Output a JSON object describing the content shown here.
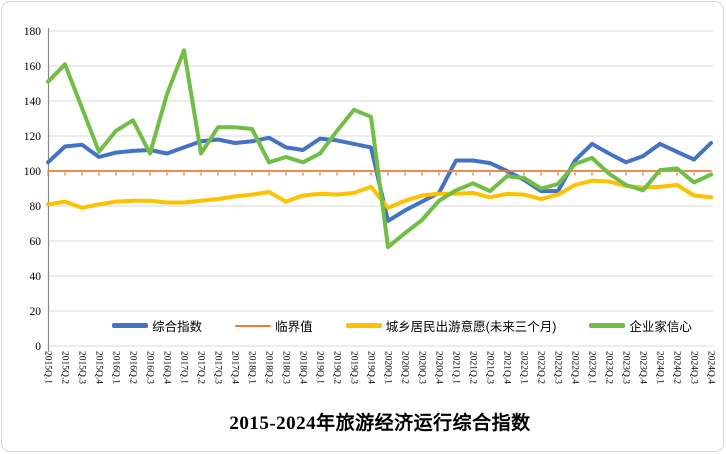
{
  "title": "2015-2024年旅游经济运行综合指数",
  "colors": {
    "grid": "#d9d9d9",
    "axis": "#898989",
    "text": "#000000",
    "background": "#ffffff"
  },
  "chart_data": {
    "type": "line",
    "title": "2015-2024年旅游经济运行综合指数",
    "xlabel": "",
    "ylabel": "",
    "ylim": [
      0,
      180
    ],
    "ytick_step": 20,
    "grid": true,
    "legend_position": "bottom",
    "x_tick_rotation": 90,
    "categories": [
      "2015Q.1",
      "2015Q.2",
      "2015Q.3",
      "2015Q.4",
      "2016Q.1",
      "2016Q.2",
      "2016Q.3",
      "2016Q.4",
      "2017Q.1",
      "2017Q.2",
      "2017Q.3",
      "2017Q.4",
      "2018Q.1",
      "2018Q.2",
      "2018Q.3",
      "2018Q.4",
      "2019Q.1",
      "2019Q.2",
      "2019Q.3",
      "2019Q.4",
      "2020Q.1",
      "2020Q.2",
      "2020Q.3",
      "2020Q.4",
      "2021Q.1",
      "2021Q.2",
      "2021Q.3",
      "2021Q.4",
      "2022Q.1",
      "2022Q.2",
      "2022Q.3",
      "2022Q.4",
      "2023Q.1",
      "2023Q.2",
      "2023Q.3",
      "2023Q.4",
      "2024Q.1",
      "2024Q.2",
      "2024Q.3",
      "2024Q.4"
    ],
    "series": [
      {
        "name": "综合指数",
        "slug": "composite-index",
        "color": "#4472c4",
        "width": 4,
        "values": [
          105,
          114,
          115,
          108,
          110.5,
          111.5,
          112,
          110,
          113.5,
          117,
          118,
          116,
          117,
          119,
          113.5,
          112,
          118.5,
          117.5,
          115.5,
          113.5,
          71.5,
          77.5,
          82.5,
          87.5,
          106,
          106,
          104.5,
          100,
          95,
          88.5,
          88.5,
          106,
          115.5,
          110,
          105,
          108.5,
          115.5,
          111,
          106.5,
          116
        ]
      },
      {
        "name": "临界值",
        "slug": "critical-value",
        "color": "#ed7d31",
        "width": 1.8,
        "marker": "dash",
        "values": [
          100,
          100,
          100,
          100,
          100,
          100,
          100,
          100,
          100,
          100,
          100,
          100,
          100,
          100,
          100,
          100,
          100,
          100,
          100,
          100,
          100,
          100,
          100,
          100,
          100,
          100,
          100,
          100,
          100,
          100,
          100,
          100,
          100,
          100,
          100,
          100,
          100,
          100,
          100,
          100
        ]
      },
      {
        "name": "城乡居民出游意愿(未来三个月)",
        "slug": "travel-intention",
        "color": "#ffc000",
        "width": 4,
        "values": [
          81,
          82.5,
          79,
          81,
          82.5,
          83,
          83,
          82,
          82,
          83,
          84,
          85.5,
          86.5,
          88,
          82.5,
          86,
          87,
          86.5,
          87.5,
          91,
          79,
          83,
          86,
          87,
          87,
          87.5,
          85,
          87,
          86.5,
          84,
          86.5,
          92,
          94.5,
          94,
          91.5,
          90.5,
          91,
          92,
          86,
          85
        ]
      },
      {
        "name": "企业家信心",
        "slug": "entrepreneur-confidence",
        "color": "#70be46",
        "width": 4,
        "values": [
          151,
          161,
          136,
          111,
          123,
          129,
          110,
          144,
          169,
          110,
          125,
          125,
          124,
          105,
          108,
          105,
          110,
          123,
          135,
          131,
          56.5,
          64.5,
          72,
          83,
          89,
          93,
          88.5,
          97,
          96,
          90,
          92.5,
          104,
          107.5,
          98.5,
          92,
          89,
          100.5,
          101.5,
          93.5,
          98
        ]
      }
    ]
  }
}
